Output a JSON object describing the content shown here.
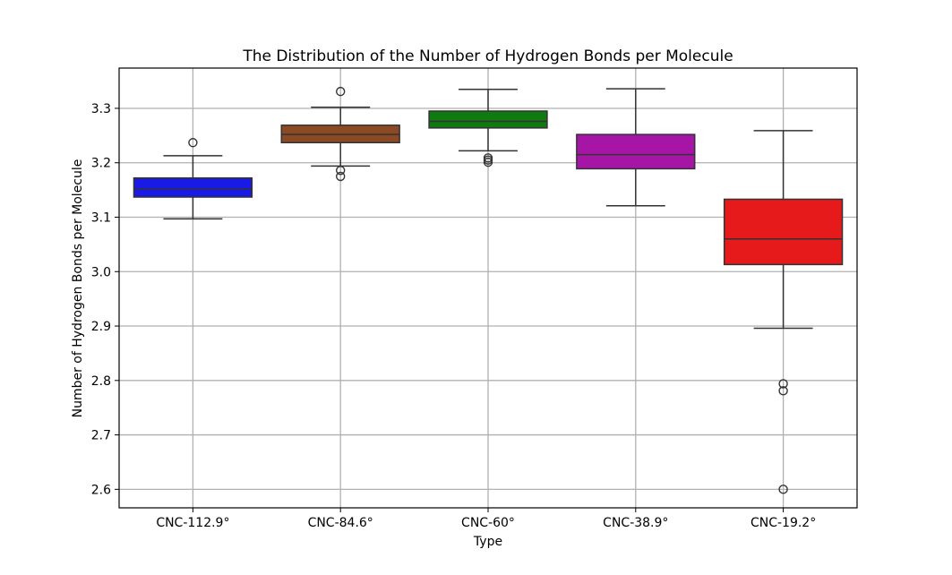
{
  "chart_data": {
    "type": "box",
    "title": "The Distribution of the Number of Hydrogen Bonds per Molecule",
    "xlabel": "Type",
    "ylabel": "Number of Hydrogen Bonds per Molecule",
    "ylim": [
      2.566,
      3.374
    ],
    "yticks": [
      "2.6",
      "2.7",
      "2.8",
      "2.9",
      "3.0",
      "3.1",
      "3.2",
      "3.3"
    ],
    "grid": true,
    "categories": [
      "CNC-112.9°",
      "CNC-84.6°",
      "CNC-60°",
      "CNC-38.9°",
      "CNC-19.2°"
    ],
    "boxes": [
      {
        "category": "CNC-112.9°",
        "color": "#1a1ae6",
        "whisker_low": 3.097,
        "q1": 3.137,
        "median": 3.152,
        "q3": 3.172,
        "whisker_high": 3.213,
        "outliers": [
          3.237
        ]
      },
      {
        "category": "CNC-84.6°",
        "color": "#8b4a24",
        "whisker_low": 3.194,
        "q1": 3.237,
        "median": 3.252,
        "q3": 3.269,
        "whisker_high": 3.302,
        "outliers": [
          3.331,
          3.186,
          3.175
        ]
      },
      {
        "category": "CNC-60°",
        "color": "#0f7a0f",
        "whisker_low": 3.222,
        "q1": 3.264,
        "median": 3.276,
        "q3": 3.295,
        "whisker_high": 3.335,
        "outliers": [
          3.209,
          3.205,
          3.201
        ]
      },
      {
        "category": "CNC-38.9°",
        "color": "#a615a6",
        "whisker_low": 3.121,
        "q1": 3.189,
        "median": 3.215,
        "q3": 3.252,
        "whisker_high": 3.336,
        "outliers": []
      },
      {
        "category": "CNC-19.2°",
        "color": "#e61a1a",
        "whisker_low": 2.896,
        "q1": 3.013,
        "median": 3.06,
        "q3": 3.133,
        "whisker_high": 3.259,
        "outliers": [
          2.794,
          2.781,
          2.6
        ]
      }
    ]
  }
}
